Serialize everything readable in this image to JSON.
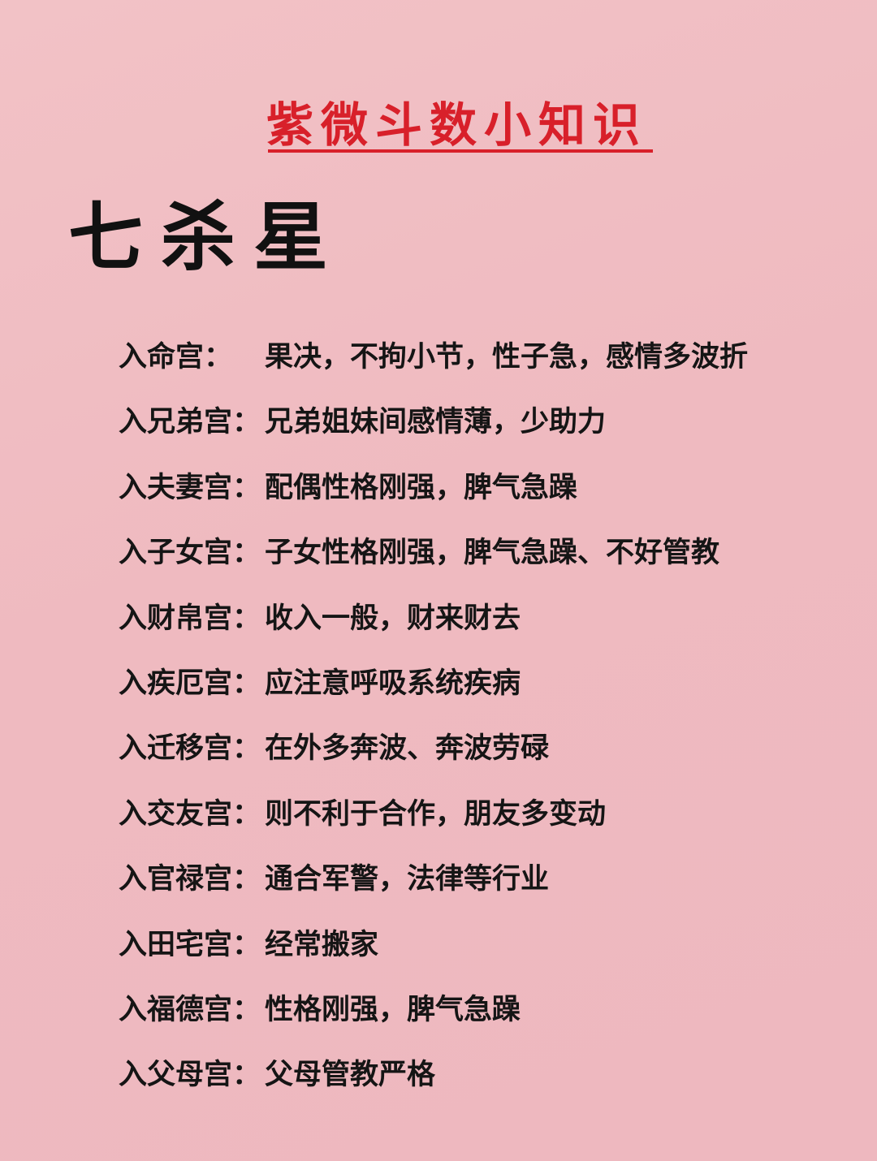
{
  "header": {
    "title": "紫微斗数小知识"
  },
  "star": {
    "name": "七杀星"
  },
  "entries": [
    {
      "palace": "入命宫：",
      "text": "果决，不拘小节，性子急，感情多波折"
    },
    {
      "palace": "入兄弟宫：",
      "text": "兄弟姐妹间感情薄，少助力"
    },
    {
      "palace": "入夫妻宫：",
      "text": "配偶性格刚强，脾气急躁"
    },
    {
      "palace": "入子女宫：",
      "text": "子女性格刚强，脾气急躁、不好管教"
    },
    {
      "palace": "入财帛宫：",
      "text": "收入一般，财来财去"
    },
    {
      "palace": "入疾厄宫：",
      "text": "应注意呼吸系统疾病"
    },
    {
      "palace": "入迁移宫：",
      "text": "在外多奔波、奔波劳碌"
    },
    {
      "palace": "入交友宫：",
      "text": "则不利于合作，朋友多变动"
    },
    {
      "palace": "入官禄宫：",
      "text": "通合军警，法律等行业"
    },
    {
      "palace": "入田宅宫：",
      "text": "经常搬家"
    },
    {
      "palace": "入福德宫：",
      "text": "性格刚强，脾气急躁"
    },
    {
      "palace": "入父母宫：",
      "text": "父母管教严格"
    }
  ],
  "colors": {
    "background": "#f0bcc1",
    "title_red": "#d8202a",
    "text_dark": "#151515"
  }
}
